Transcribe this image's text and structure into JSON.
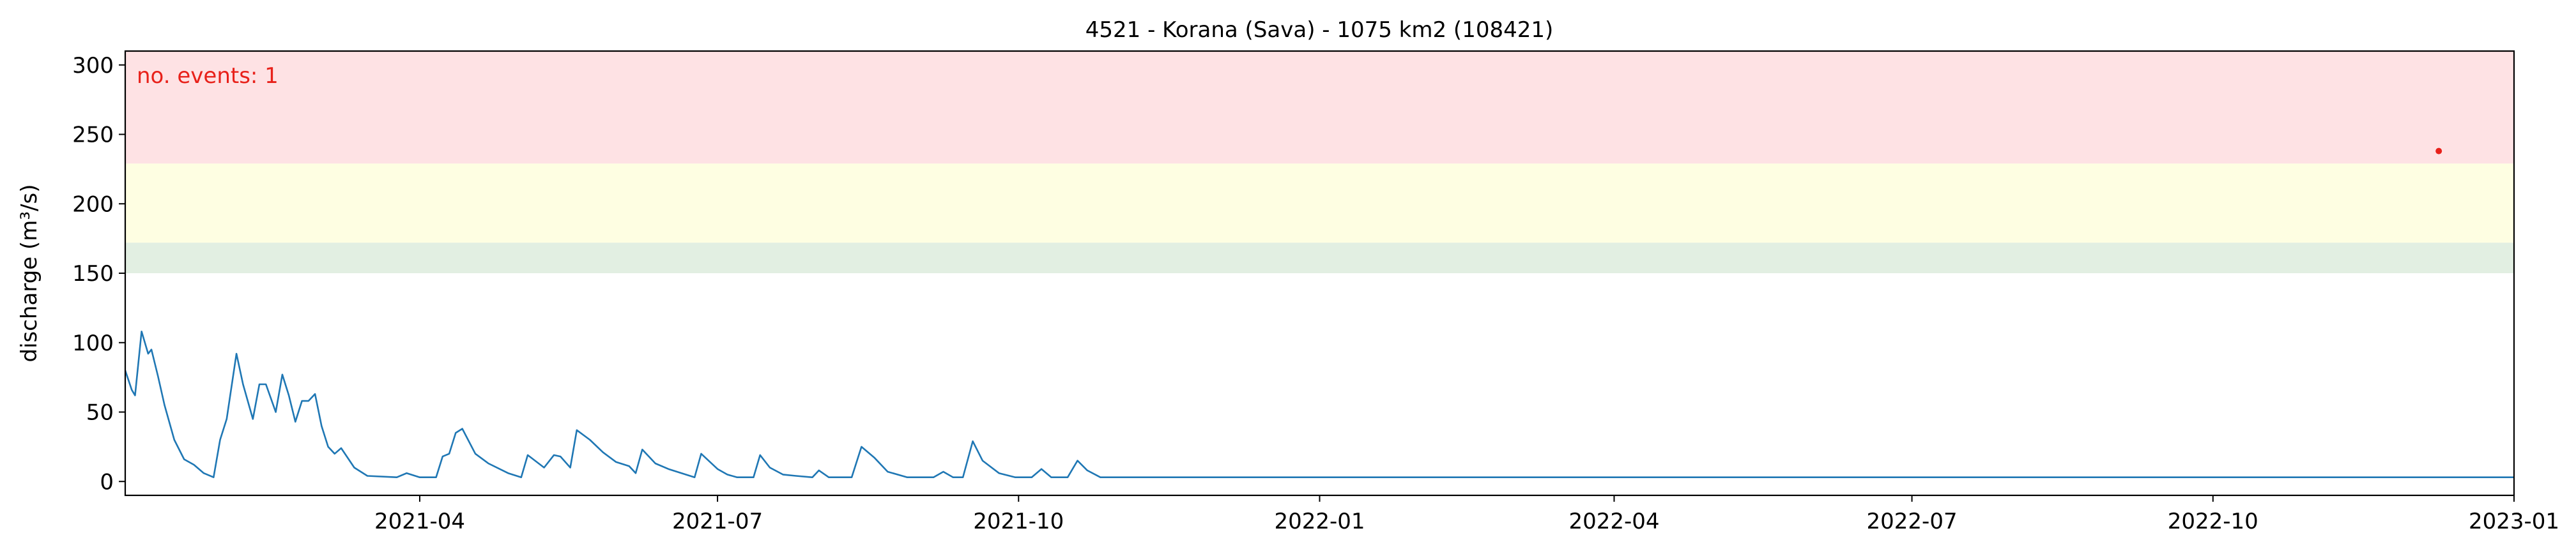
{
  "chart_data": {
    "type": "line",
    "title": "4521 - Korana (Sava) - 1075 km2 (108421)",
    "xlabel": "",
    "ylabel": "discharge (m³/s)",
    "annotation": "no. events: 1",
    "xlim": [
      "2021-01-01",
      "2023-01-01"
    ],
    "ylim": [
      -10,
      310
    ],
    "x_ticks": [
      "2021-04-01",
      "2021-07-01",
      "2021-10-01",
      "2022-01-01",
      "2022-04-01",
      "2022-07-01",
      "2022-10-01",
      "2023-01-01"
    ],
    "x_tick_labels": [
      "2021-04",
      "2021-07",
      "2021-10",
      "2022-01",
      "2022-04",
      "2022-07",
      "2022-10",
      "2023-01"
    ],
    "y_ticks": [
      0,
      50,
      100,
      150,
      200,
      250,
      300
    ],
    "y_tick_labels": [
      "0",
      "50",
      "100",
      "150",
      "200",
      "250",
      "300"
    ],
    "threshold_bands": [
      {
        "from": 150,
        "to": 172,
        "color": "#e2efe2"
      },
      {
        "from": 172,
        "to": 229,
        "color": "#fefee2"
      },
      {
        "from": 229,
        "to": 310,
        "color": "#fee2e4"
      }
    ],
    "grid": false,
    "legend": "none",
    "colors": {
      "line": "#1f77b4",
      "event": "#e8211a",
      "annotation": "#e8211a"
    },
    "series": [
      {
        "values": [
          [
            "2021-01-01",
            80
          ],
          [
            "2021-01-03",
            66
          ],
          [
            "2021-01-04",
            62
          ],
          [
            "2021-01-06",
            108
          ],
          [
            "2021-01-08",
            92
          ],
          [
            "2021-01-09",
            95
          ],
          [
            "2021-01-11",
            76
          ],
          [
            "2021-01-13",
            55
          ],
          [
            "2021-01-16",
            30
          ],
          [
            "2021-01-19",
            16
          ],
          [
            "2021-01-22",
            12
          ],
          [
            "2021-01-25",
            6
          ],
          [
            "2021-01-28",
            3
          ],
          [
            "2021-01-30",
            30
          ],
          [
            "2021-02-01",
            45
          ],
          [
            "2021-02-04",
            92
          ],
          [
            "2021-02-06",
            70
          ],
          [
            "2021-02-09",
            45
          ],
          [
            "2021-02-11",
            70
          ],
          [
            "2021-02-13",
            70
          ],
          [
            "2021-02-16",
            50
          ],
          [
            "2021-02-18",
            77
          ],
          [
            "2021-02-20",
            62
          ],
          [
            "2021-02-22",
            43
          ],
          [
            "2021-02-24",
            58
          ],
          [
            "2021-02-26",
            58
          ],
          [
            "2021-02-28",
            63
          ],
          [
            "2021-03-02",
            40
          ],
          [
            "2021-03-04",
            25
          ],
          [
            "2021-03-06",
            20
          ],
          [
            "2021-03-08",
            24
          ],
          [
            "2021-03-12",
            10
          ],
          [
            "2021-03-16",
            4
          ],
          [
            "2021-03-25",
            3
          ],
          [
            "2021-03-28",
            6
          ],
          [
            "2021-04-01",
            3
          ],
          [
            "2021-04-06",
            3
          ],
          [
            "2021-04-08",
            18
          ],
          [
            "2021-04-10",
            20
          ],
          [
            "2021-04-12",
            35
          ],
          [
            "2021-04-14",
            38
          ],
          [
            "2021-04-18",
            20
          ],
          [
            "2021-04-22",
            13
          ],
          [
            "2021-04-28",
            6
          ],
          [
            "2021-05-02",
            3
          ],
          [
            "2021-05-04",
            19
          ],
          [
            "2021-05-09",
            10
          ],
          [
            "2021-05-12",
            19
          ],
          [
            "2021-05-14",
            18
          ],
          [
            "2021-05-17",
            10
          ],
          [
            "2021-05-19",
            37
          ],
          [
            "2021-05-23",
            30
          ],
          [
            "2021-05-27",
            21
          ],
          [
            "2021-05-31",
            14
          ],
          [
            "2021-06-04",
            11
          ],
          [
            "2021-06-06",
            6
          ],
          [
            "2021-06-08",
            23
          ],
          [
            "2021-06-12",
            13
          ],
          [
            "2021-06-16",
            9
          ],
          [
            "2021-06-20",
            6
          ],
          [
            "2021-06-24",
            3
          ],
          [
            "2021-06-26",
            20
          ],
          [
            "2021-07-01",
            9
          ],
          [
            "2021-07-04",
            5
          ],
          [
            "2021-07-07",
            3
          ],
          [
            "2021-07-12",
            3
          ],
          [
            "2021-07-14",
            19
          ],
          [
            "2021-07-17",
            10
          ],
          [
            "2021-07-21",
            5
          ],
          [
            "2021-07-25",
            4
          ],
          [
            "2021-07-30",
            3
          ],
          [
            "2021-08-01",
            8
          ],
          [
            "2021-08-04",
            3
          ],
          [
            "2021-08-11",
            3
          ],
          [
            "2021-08-14",
            25
          ],
          [
            "2021-08-18",
            17
          ],
          [
            "2021-08-22",
            7
          ],
          [
            "2021-08-28",
            3
          ],
          [
            "2021-09-05",
            3
          ],
          [
            "2021-09-08",
            7
          ],
          [
            "2021-09-11",
            3
          ],
          [
            "2021-09-14",
            3
          ],
          [
            "2021-09-17",
            29
          ],
          [
            "2021-09-20",
            15
          ],
          [
            "2021-09-25",
            6
          ],
          [
            "2021-09-30",
            3
          ],
          [
            "2021-10-05",
            3
          ],
          [
            "2021-10-08",
            9
          ],
          [
            "2021-10-11",
            3
          ],
          [
            "2021-10-16",
            3
          ],
          [
            "2021-10-19",
            15
          ],
          [
            "2021-10-22",
            8
          ],
          [
            "2021-10-26",
            3
          ],
          [
            "2021-11-04",
            3
          ],
          [
            "2021-11-09",
            3
          ],
          [
            "2021-11-20",
            3
          ],
          [
            "2021-12-04",
            3
          ],
          [
            "2021-12-10",
            3
          ],
          [
            "2021-12-20",
            3
          ],
          [
            "2022-01-01",
            3
          ],
          [
            "2022-01-10",
            3
          ],
          [
            "2022-01-20",
            3
          ],
          [
            "2022-01-28",
            3
          ],
          [
            "2022-02-01",
            3
          ],
          [
            "2022-02-10",
            3
          ],
          [
            "2022-02-20",
            3
          ],
          [
            "2022-03-01",
            3
          ],
          [
            "2022-03-10",
            3
          ],
          [
            "2022-03-20",
            3
          ],
          [
            "2022-04-01",
            3
          ],
          [
            "2022-04-10",
            3
          ],
          [
            "2022-04-20",
            3
          ],
          [
            "2022-05-01",
            3
          ],
          [
            "2022-05-08",
            3
          ],
          [
            "2022-05-16",
            3
          ],
          [
            "2022-05-26",
            3
          ],
          [
            "2022-06-01",
            3
          ],
          [
            "2022-06-10",
            3
          ],
          [
            "2022-06-20",
            3
          ],
          [
            "2022-07-01",
            3
          ],
          [
            "2022-07-10",
            3
          ],
          [
            "2022-07-20",
            3
          ],
          [
            "2022-08-01",
            3
          ],
          [
            "2022-08-10",
            3
          ],
          [
            "2022-08-20",
            3
          ],
          [
            "2022-08-31",
            3
          ],
          [
            "2022-09-10",
            3
          ],
          [
            "2022-09-20",
            3
          ],
          [
            "2022-10-01",
            3
          ],
          [
            "2022-10-10",
            3
          ],
          [
            "2022-10-20",
            3
          ],
          [
            "2022-11-01",
            3
          ],
          [
            "2022-11-10",
            3
          ],
          [
            "2022-11-20",
            3
          ],
          [
            "2022-12-01",
            3
          ],
          [
            "2022-12-10",
            3
          ],
          [
            "2022-12-20",
            3
          ],
          [
            "2023-01-01",
            3
          ]
        ]
      }
    ],
    "events": [
      {
        "x": "2022-12-09",
        "y": 238
      }
    ]
  }
}
